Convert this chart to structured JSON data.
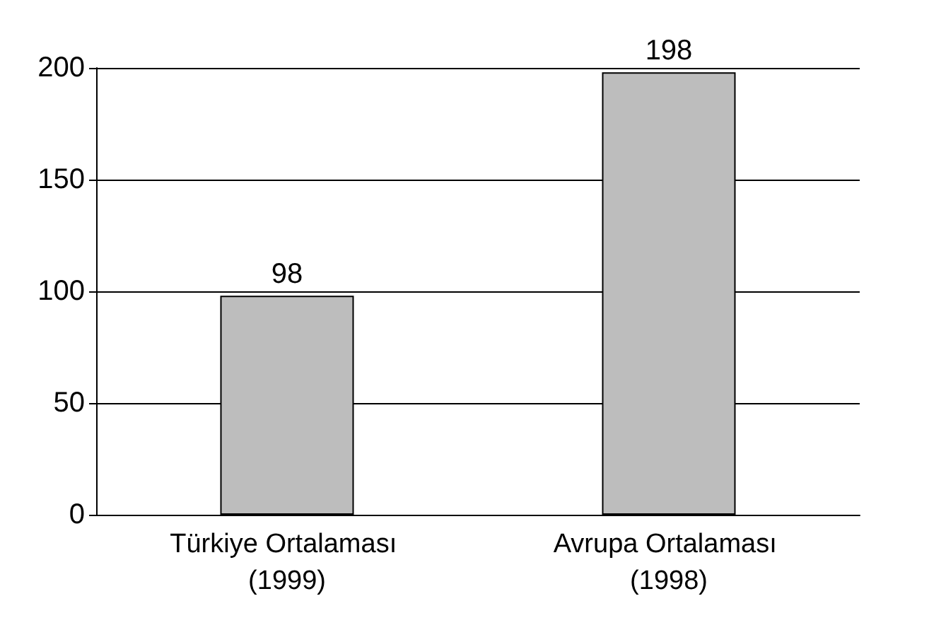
{
  "chart_data": {
    "type": "bar",
    "categories": [
      "Türkiye Ortalaması (1999)",
      "Avrupa Ortalaması (1998)"
    ],
    "values": [
      98,
      198
    ],
    "color": "#bdbdbd",
    "ylim": [
      0,
      200
    ],
    "yticks": [
      0,
      50,
      100,
      150,
      200
    ],
    "grid": "y",
    "data_labels": true
  }
}
